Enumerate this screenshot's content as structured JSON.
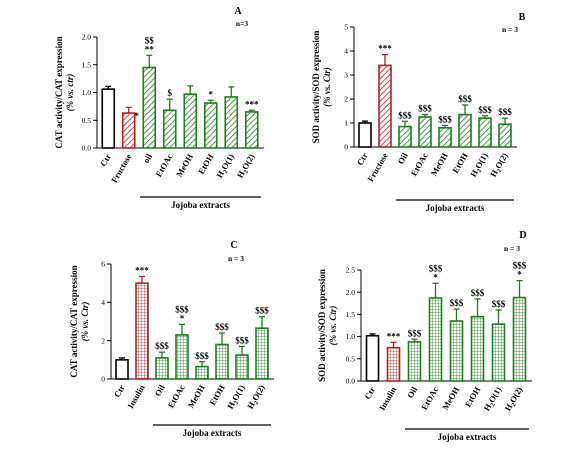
{
  "colors": {
    "control": "#000000",
    "red": "#b22222",
    "green": "#1e7d1e"
  },
  "chart_data": [
    {
      "panel": "A",
      "type": "bar",
      "n_label": "n=3",
      "ylabel": "CAT activity/CAT expression",
      "ylabel_sub": "(% vs. ctr)",
      "ylim": [
        0,
        2.0
      ],
      "yticks": [
        "0.0",
        "0.5",
        "1.0",
        "1.5",
        "2.0"
      ],
      "categories": [
        "Ctr",
        "Fructose",
        "oil",
        "EtOAc",
        "MeOH",
        "EtOH",
        "H2O(1)",
        "H2O(2)"
      ],
      "values": [
        1.06,
        0.63,
        1.45,
        0.68,
        0.97,
        0.81,
        0.92,
        0.65
      ],
      "errors": [
        0.05,
        0.1,
        0.22,
        0.2,
        0.15,
        0.05,
        0.18,
        0.03
      ],
      "styles": [
        "open",
        "red-hatch",
        "green-hatch",
        "green-hatch",
        "green-hatch",
        "green-hatch",
        "green-hatch",
        "green-hatch"
      ],
      "annotations": [
        [],
        [
          "*"
        ],
        [
          "**",
          "$$"
        ],
        [
          "$"
        ],
        [],
        [
          "*"
        ],
        [],
        [
          "***"
        ]
      ],
      "group_label": "Jojoba extracts",
      "group_range": [
        2,
        7
      ]
    },
    {
      "panel": "B",
      "type": "bar",
      "n_label": "n = 3",
      "ylabel": "SOD activity/SOD expression",
      "ylabel_sub": "(% vs. Ctr)",
      "ylim": [
        0,
        5
      ],
      "yticks": [
        "0",
        "1",
        "2",
        "3",
        "4",
        "5"
      ],
      "categories": [
        "Ctr",
        "Fructose",
        "Oil",
        "EtOAc",
        "MeOH",
        "EtOH",
        "H2O(1)",
        "H2O(2)"
      ],
      "values": [
        1.0,
        3.4,
        0.85,
        1.25,
        0.8,
        1.35,
        1.2,
        0.95
      ],
      "errors": [
        0.08,
        0.45,
        0.22,
        0.1,
        0.1,
        0.4,
        0.1,
        0.25
      ],
      "styles": [
        "open",
        "red-hatch",
        "green-hatch",
        "green-hatch",
        "green-hatch",
        "green-hatch",
        "green-hatch",
        "green-hatch"
      ],
      "annotations": [
        [],
        [
          "***"
        ],
        [
          "$$$"
        ],
        [
          "$$$"
        ],
        [
          "$$$"
        ],
        [
          "$$$"
        ],
        [
          "$$$"
        ],
        [
          "$$$"
        ]
      ],
      "group_label": "Jojoba extracts",
      "group_range": [
        2,
        7
      ]
    },
    {
      "panel": "C",
      "type": "bar",
      "n_label": "n = 3",
      "ylabel": "CAT activity/CAT expression",
      "ylabel_sub": "(% vs. Ctr)",
      "ylim": [
        0,
        6
      ],
      "yticks": [
        "0",
        "2",
        "4",
        "6"
      ],
      "categories": [
        "Ctr",
        "Insulin",
        "Oil",
        "EtOAc",
        "MeOH",
        "EtOH",
        "H2O(1)",
        "H2O(2)"
      ],
      "values": [
        1.0,
        5.0,
        1.1,
        2.3,
        0.65,
        1.8,
        1.25,
        2.65
      ],
      "errors": [
        0.1,
        0.35,
        0.3,
        0.55,
        0.25,
        0.6,
        0.45,
        0.6
      ],
      "styles": [
        "open",
        "red-grid",
        "green-grid",
        "green-grid",
        "green-grid",
        "green-grid",
        "green-grid",
        "green-grid"
      ],
      "annotations": [
        [],
        [
          "***"
        ],
        [
          "$$$"
        ],
        [
          "*",
          "$$$"
        ],
        [
          "$$$"
        ],
        [
          "$$$"
        ],
        [
          "$$$"
        ],
        [
          "$$$"
        ]
      ],
      "group_label": "Jojoba extracts",
      "group_range": [
        2,
        7
      ]
    },
    {
      "panel": "D",
      "type": "bar",
      "n_label": "n = 3",
      "ylabel": "SOD activity/SOD expression",
      "ylabel_sub": "(% vs. Ctr)",
      "ylim": [
        0,
        2.5
      ],
      "yticks": [
        "0.0",
        "0.5",
        "1.0",
        "1.5",
        "2.0",
        "2.5"
      ],
      "categories": [
        "Ctr",
        "Insulin",
        "Oil",
        "EtOAc",
        "MeOH",
        "EtOH",
        "H2O(1)",
        "H2O(2)"
      ],
      "values": [
        1.02,
        0.75,
        0.88,
        1.87,
        1.35,
        1.45,
        1.28,
        1.88
      ],
      "errors": [
        0.04,
        0.12,
        0.06,
        0.33,
        0.27,
        0.4,
        0.32,
        0.38
      ],
      "styles": [
        "open",
        "red-grid",
        "green-grid",
        "green-grid",
        "green-grid",
        "green-grid",
        "green-grid",
        "green-grid"
      ],
      "annotations": [
        [],
        [
          "***"
        ],
        [
          "$$$"
        ],
        [
          "*",
          "$$$"
        ],
        [
          "$$$"
        ],
        [
          "$$$"
        ],
        [
          "$$$"
        ],
        [
          "*",
          "$$$"
        ]
      ],
      "group_label": "Jojoba extracts",
      "group_range": [
        2,
        7
      ]
    }
  ]
}
